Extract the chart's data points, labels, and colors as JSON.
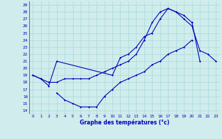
{
  "title": "Graphe des températures (°c)",
  "bg_color": "#d0ecec",
  "grid_color": "#a8d8d8",
  "line_color": "#0000bb",
  "xlim": [
    -0.5,
    23.5
  ],
  "ylim_min": 14,
  "ylim_max": 29,
  "xtick_labels": [
    "0",
    "1",
    "2",
    "3",
    "4",
    "5",
    "6",
    "7",
    "8",
    "9",
    "10",
    "11",
    "12",
    "13",
    "14",
    "15",
    "16",
    "17",
    "18",
    "19",
    "20",
    "21",
    "22",
    "23"
  ],
  "ytick_labels": [
    "14",
    "15",
    "16",
    "17",
    "18",
    "19",
    "20",
    "21",
    "22",
    "23",
    "24",
    "25",
    "26",
    "27",
    "28",
    "29"
  ],
  "line1_x": [
    0,
    1,
    2,
    3,
    4,
    5,
    6,
    7,
    8,
    9,
    10,
    11,
    12,
    13,
    14,
    15,
    16,
    17,
    18,
    19,
    20,
    21
  ],
  "line1_y": [
    19,
    18.5,
    18,
    18,
    18.5,
    18.5,
    18.5,
    18.5,
    19,
    19.5,
    20,
    20.5,
    21,
    22,
    24,
    26.5,
    28,
    28.5,
    28,
    27.5,
    26.5,
    21
  ],
  "line2_x": [
    0,
    1,
    2,
    3,
    10,
    11,
    12,
    13,
    14,
    15,
    16,
    17,
    18,
    19,
    20,
    21,
    22,
    23
  ],
  "line2_y": [
    19,
    18.5,
    17.5,
    21,
    19,
    21.5,
    22,
    23,
    24.5,
    25,
    27,
    28.5,
    28,
    27,
    26,
    22.5,
    22,
    21
  ],
  "line3_x": [
    3,
    4,
    5,
    6,
    7,
    8,
    9,
    10,
    11,
    12,
    13,
    14,
    15,
    16,
    17,
    18,
    19,
    20
  ],
  "line3_y": [
    16.5,
    15.5,
    15,
    14.5,
    14.5,
    14.5,
    16,
    17,
    18,
    18.5,
    19,
    19.5,
    20.5,
    21,
    22,
    22.5,
    23,
    24
  ]
}
